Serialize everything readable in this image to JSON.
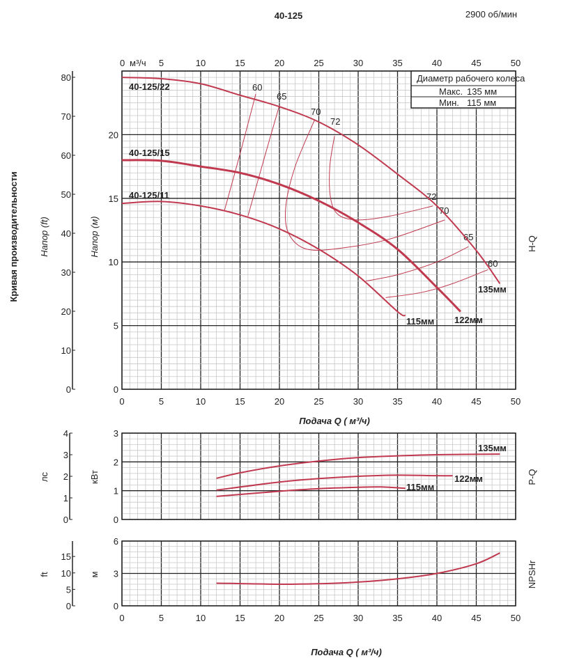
{
  "chart_data": [
    {
      "type": "line",
      "title": "40-125",
      "speed": "2900 об/мин",
      "panel": "H-Q",
      "xlabel": "Подача Q ( м³/ч)",
      "top_axis_unit": "м³/ч",
      "ylabel": "Напор (м)",
      "ylabel_ft": "Напор (ft)",
      "side_label": "Кривая производительности",
      "xlim": [
        0,
        50
      ],
      "ylim": [
        0,
        25
      ],
      "ft_lim": [
        0,
        80
      ],
      "x_ticks": [
        "0",
        "5",
        "10",
        "15",
        "20",
        "25",
        "30",
        "35",
        "40",
        "45",
        "50"
      ],
      "y_ticks": [
        "0",
        "5",
        "10",
        "15",
        "20"
      ],
      "ft_ticks": [
        "0",
        "10",
        "20",
        "30",
        "40",
        "50",
        "60",
        "70",
        "80"
      ],
      "legend_box": {
        "title": "Диаметр рабочего колеса",
        "max_label": "Макс.",
        "max_value": "135 мм",
        "min_label": "Мин.",
        "min_value": "115  мм"
      },
      "series": [
        {
          "name": "40-125/22",
          "end_label": "135мм",
          "x": [
            0,
            5,
            10,
            15,
            20,
            25,
            30,
            35,
            40,
            45,
            48
          ],
          "y": [
            24.5,
            24.4,
            24.0,
            23.1,
            22.2,
            21.0,
            19.2,
            16.9,
            14.4,
            10.9,
            8.3
          ]
        },
        {
          "name": "40-125/15",
          "end_label": "122мм",
          "x": [
            0,
            5,
            10,
            15,
            20,
            25,
            30,
            35,
            40,
            43
          ],
          "y": [
            18.0,
            17.95,
            17.5,
            17.0,
            16.1,
            14.8,
            13.1,
            11.0,
            8.0,
            6.1
          ]
        },
        {
          "name": "40-125/11",
          "end_label": "115мм",
          "x": [
            0,
            5,
            10,
            15,
            20,
            25,
            30,
            35,
            36
          ],
          "y": [
            14.6,
            14.75,
            14.4,
            13.7,
            12.6,
            11.0,
            8.9,
            6.1,
            5.8
          ]
        }
      ],
      "efficiency": [
        {
          "label": "60",
          "x": [
            17,
            15,
            13
          ],
          "y": [
            23.2,
            18.5,
            14.0
          ]
        },
        {
          "label": "65",
          "x": [
            20,
            18,
            16
          ],
          "y": [
            22.3,
            18.0,
            13.6
          ]
        },
        {
          "label": "70",
          "x": [
            24.5,
            22,
            20.8,
            21.2,
            23.5,
            28,
            34,
            41
          ],
          "y": [
            21.2,
            17.5,
            14.3,
            12.2,
            11.0,
            11.1,
            11.8,
            13.3
          ]
        },
        {
          "label": "72",
          "x": [
            27,
            26.4,
            26.5,
            27.5,
            30,
            34,
            39.5
          ],
          "y": [
            19.9,
            17.5,
            15.0,
            13.7,
            13.3,
            13.6,
            14.4
          ]
        },
        {
          "label": "72",
          "x": [
            39.5
          ],
          "y": [
            14.4
          ]
        },
        {
          "label": "70",
          "x": [
            41
          ],
          "y": [
            13.3
          ]
        },
        {
          "label": "65",
          "x": [
            44,
            40,
            35,
            31
          ],
          "y": [
            11.2,
            10.0,
            9.0,
            8.5
          ]
        },
        {
          "label": "60",
          "x": [
            46.5,
            42,
            38,
            33.5
          ],
          "y": [
            9.4,
            8.3,
            7.6,
            7.2
          ]
        }
      ]
    },
    {
      "type": "line",
      "panel": "P-Q",
      "ylabel": "кВт",
      "ylabel2": "лс",
      "xlim": [
        0,
        50
      ],
      "ylim": [
        0,
        3
      ],
      "y_ticks": [
        "0",
        "1",
        "2",
        "3"
      ],
      "y2_ticks": [
        "0",
        "1",
        "2",
        "3",
        "4"
      ],
      "series": [
        {
          "name": "135мм",
          "x": [
            12,
            15,
            20,
            25,
            30,
            35,
            40,
            48
          ],
          "y": [
            1.43,
            1.62,
            1.86,
            2.03,
            2.15,
            2.21,
            2.25,
            2.27
          ]
        },
        {
          "name": "122мм",
          "x": [
            12,
            20,
            25,
            30,
            35,
            40,
            42
          ],
          "y": [
            1.02,
            1.3,
            1.42,
            1.5,
            1.54,
            1.52,
            1.52
          ]
        },
        {
          "name": "115мм",
          "x": [
            12,
            20,
            25,
            30,
            33,
            36
          ],
          "y": [
            0.8,
            0.98,
            1.07,
            1.12,
            1.13,
            1.08
          ]
        }
      ]
    },
    {
      "type": "line",
      "panel": "NPSHr",
      "ylabel": "м",
      "ylabel2": "ft",
      "xlim": [
        0,
        50
      ],
      "ylim": [
        0,
        6
      ],
      "xlabel": "Подача Q ( м³/ч)",
      "x_ticks": [
        "0",
        "5",
        "10",
        "15",
        "20",
        "25",
        "30",
        "35",
        "40",
        "45",
        "50"
      ],
      "y_ticks": [
        "0",
        "3",
        "6"
      ],
      "y2_ticks": [
        "0",
        "5",
        "10",
        "15"
      ],
      "series": [
        {
          "name": "NPSHr",
          "x": [
            12,
            20,
            25,
            30,
            35,
            40,
            45,
            48
          ],
          "y": [
            2.1,
            2.0,
            2.05,
            2.2,
            2.5,
            3.0,
            3.9,
            4.9
          ]
        }
      ]
    }
  ],
  "colors": {
    "curve": "#c0394f",
    "grid_major": "#222222",
    "grid_minor": "#c8c8c8"
  }
}
